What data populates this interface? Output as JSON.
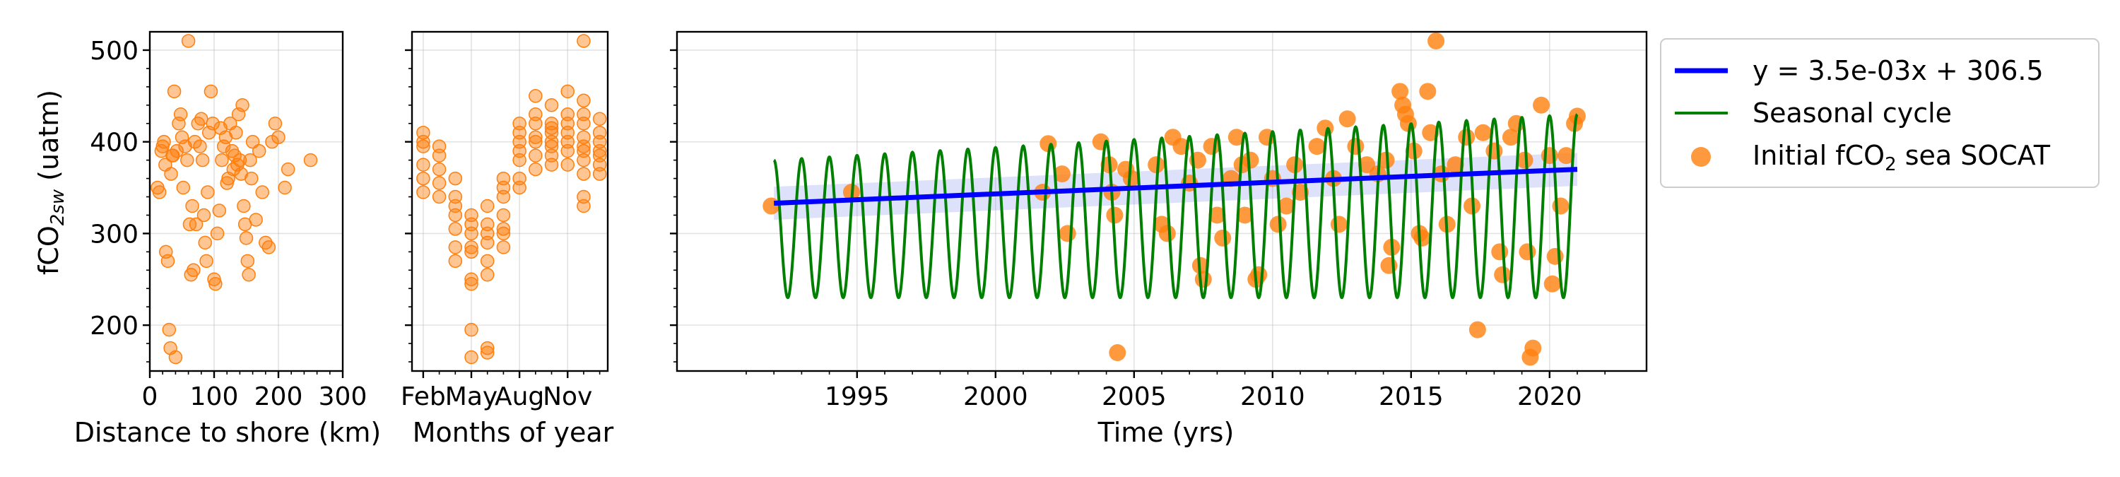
{
  "chart_data": [
    {
      "type": "scatter",
      "xlabel": "Distance to shore (km)",
      "ylabel": "fCO2sw (uatm)",
      "xlim": [
        0,
        300
      ],
      "ylim": [
        150,
        520
      ],
      "xticks": [
        0,
        100,
        200,
        300
      ],
      "yticks": [
        200,
        300,
        400,
        500
      ],
      "grid": true,
      "marker_color": "#ff7f0e",
      "points": [
        [
          22,
          400
        ],
        [
          25,
          280
        ],
        [
          28,
          270
        ],
        [
          30,
          195
        ],
        [
          32,
          175
        ],
        [
          35,
          385
        ],
        [
          38,
          455
        ],
        [
          40,
          165
        ],
        [
          42,
          390
        ],
        [
          45,
          420
        ],
        [
          48,
          430
        ],
        [
          50,
          405
        ],
        [
          52,
          350
        ],
        [
          55,
          395
        ],
        [
          58,
          380
        ],
        [
          60,
          510
        ],
        [
          62,
          310
        ],
        [
          64,
          255
        ],
        [
          66,
          330
        ],
        [
          68,
          260
        ],
        [
          70,
          400
        ],
        [
          72,
          310
        ],
        [
          75,
          420
        ],
        [
          78,
          395
        ],
        [
          80,
          425
        ],
        [
          82,
          380
        ],
        [
          84,
          320
        ],
        [
          86,
          290
        ],
        [
          88,
          270
        ],
        [
          90,
          345
        ],
        [
          92,
          410
        ],
        [
          95,
          455
        ],
        [
          98,
          420
        ],
        [
          100,
          250
        ],
        [
          102,
          245
        ],
        [
          105,
          300
        ],
        [
          108,
          325
        ],
        [
          110,
          415
        ],
        [
          112,
          380
        ],
        [
          115,
          395
        ],
        [
          118,
          405
        ],
        [
          120,
          355
        ],
        [
          122,
          360
        ],
        [
          125,
          420
        ],
        [
          128,
          390
        ],
        [
          130,
          370
        ],
        [
          132,
          385
        ],
        [
          134,
          410
        ],
        [
          136,
          375
        ],
        [
          138,
          430
        ],
        [
          140,
          380
        ],
        [
          142,
          365
        ],
        [
          144,
          440
        ],
        [
          146,
          330
        ],
        [
          148,
          310
        ],
        [
          150,
          295
        ],
        [
          152,
          270
        ],
        [
          154,
          255
        ],
        [
          156,
          380
        ],
        [
          158,
          360
        ],
        [
          160,
          400
        ],
        [
          165,
          315
        ],
        [
          170,
          390
        ],
        [
          175,
          345
        ],
        [
          180,
          290
        ],
        [
          185,
          285
        ],
        [
          190,
          400
        ],
        [
          195,
          420
        ],
        [
          200,
          405
        ],
        [
          210,
          350
        ],
        [
          215,
          370
        ],
        [
          250,
          380
        ],
        [
          12,
          350
        ],
        [
          15,
          345
        ],
        [
          18,
          390
        ],
        [
          20,
          395
        ],
        [
          24,
          375
        ],
        [
          33,
          365
        ],
        [
          36,
          385
        ]
      ]
    },
    {
      "type": "scatter",
      "xlabel": "Months of year",
      "xticks": [
        "Feb",
        "May",
        "Aug",
        "Nov"
      ],
      "ylim": [
        150,
        520
      ],
      "grid": true,
      "marker_color": "#ff7f0e",
      "points": [
        [
          1,
          400
        ],
        [
          1,
          375
        ],
        [
          1,
          360
        ],
        [
          1,
          410
        ],
        [
          1,
          345
        ],
        [
          1,
          395
        ],
        [
          2,
          385
        ],
        [
          2,
          370
        ],
        [
          2,
          355
        ],
        [
          2,
          340
        ],
        [
          2,
          395
        ],
        [
          3,
          360
        ],
        [
          3,
          340
        ],
        [
          3,
          320
        ],
        [
          3,
          285
        ],
        [
          3,
          270
        ],
        [
          3,
          330
        ],
        [
          3,
          305
        ],
        [
          4,
          300
        ],
        [
          4,
          285
        ],
        [
          4,
          250
        ],
        [
          4,
          245
        ],
        [
          4,
          195
        ],
        [
          4,
          165
        ],
        [
          4,
          280
        ],
        [
          4,
          320
        ],
        [
          4,
          310
        ],
        [
          5,
          310
        ],
        [
          5,
          290
        ],
        [
          5,
          270
        ],
        [
          5,
          255
        ],
        [
          5,
          175
        ],
        [
          5,
          170
        ],
        [
          5,
          330
        ],
        [
          5,
          300
        ],
        [
          6,
          320
        ],
        [
          6,
          300
        ],
        [
          6,
          340
        ],
        [
          6,
          285
        ],
        [
          6,
          360
        ],
        [
          6,
          350
        ],
        [
          6,
          305
        ],
        [
          7,
          420
        ],
        [
          7,
          400
        ],
        [
          7,
          380
        ],
        [
          7,
          360
        ],
        [
          7,
          350
        ],
        [
          7,
          410
        ],
        [
          7,
          390
        ],
        [
          8,
          450
        ],
        [
          8,
          420
        ],
        [
          8,
          400
        ],
        [
          8,
          385
        ],
        [
          8,
          370
        ],
        [
          8,
          405
        ],
        [
          8,
          430
        ],
        [
          9,
          440
        ],
        [
          9,
          415
        ],
        [
          9,
          400
        ],
        [
          9,
          395
        ],
        [
          9,
          420
        ],
        [
          9,
          385
        ],
        [
          9,
          375
        ],
        [
          9,
          410
        ],
        [
          10,
          455
        ],
        [
          10,
          420
        ],
        [
          10,
          400
        ],
        [
          10,
          390
        ],
        [
          10,
          430
        ],
        [
          10,
          410
        ],
        [
          10,
          375
        ],
        [
          11,
          510
        ],
        [
          11,
          445
        ],
        [
          11,
          420
        ],
        [
          11,
          390
        ],
        [
          11,
          380
        ],
        [
          11,
          340
        ],
        [
          11,
          330
        ],
        [
          11,
          365
        ],
        [
          11,
          405
        ],
        [
          11,
          430
        ],
        [
          11,
          395
        ],
        [
          12,
          425
        ],
        [
          12,
          410
        ],
        [
          12,
          400
        ],
        [
          12,
          375
        ],
        [
          12,
          390
        ],
        [
          12,
          365
        ],
        [
          12,
          385
        ]
      ]
    },
    {
      "type": "line",
      "xlabel": "Time (yrs)",
      "xlim": [
        1988.5,
        2023.5
      ],
      "ylim": [
        150,
        520
      ],
      "xticks": [
        1995,
        2000,
        2005,
        2010,
        2015,
        2020
      ],
      "yticks": [
        200,
        300,
        400,
        500
      ],
      "grid": true,
      "legend_position": "outside-right-top",
      "series": [
        {
          "name": "y = 3.5e-03x + 306.5",
          "kind": "trend",
          "color": "#0000ff",
          "x": [
            1992,
            2021
          ],
          "y": [
            333,
            370
          ],
          "band_halfwidth": 18,
          "band_color": "#6a75e6"
        },
        {
          "name": "Seasonal cycle",
          "kind": "seasonal",
          "color": "#008000",
          "x_start": 1992,
          "x_end": 2021,
          "y_start_mean": 305,
          "y_end_mean": 330,
          "amplitude_start": 75,
          "amplitude_end": 100,
          "period_years": 1.0
        },
        {
          "name": "Initial fCO2 sea SOCAT",
          "kind": "points",
          "color": "#ff7f0e",
          "points": [
            [
              1991.9,
              330
            ],
            [
              1994.8,
              345
            ],
            [
              2001.7,
              345
            ],
            [
              2001.9,
              398
            ],
            [
              2002.4,
              365
            ],
            [
              2002.6,
              300
            ],
            [
              2003.8,
              400
            ],
            [
              2004.1,
              375
            ],
            [
              2004.2,
              345
            ],
            [
              2004.3,
              320
            ],
            [
              2004.4,
              170
            ],
            [
              2004.7,
              370
            ],
            [
              2004.9,
              360
            ],
            [
              2005.8,
              375
            ],
            [
              2006.0,
              310
            ],
            [
              2006.2,
              300
            ],
            [
              2006.4,
              405
            ],
            [
              2006.7,
              395
            ],
            [
              2007.0,
              355
            ],
            [
              2007.3,
              380
            ],
            [
              2007.4,
              265
            ],
            [
              2007.5,
              250
            ],
            [
              2007.8,
              395
            ],
            [
              2008.0,
              320
            ],
            [
              2008.2,
              295
            ],
            [
              2008.5,
              360
            ],
            [
              2008.7,
              405
            ],
            [
              2008.9,
              375
            ],
            [
              2009.0,
              320
            ],
            [
              2009.2,
              380
            ],
            [
              2009.4,
              250
            ],
            [
              2009.5,
              255
            ],
            [
              2009.8,
              405
            ],
            [
              2010.0,
              360
            ],
            [
              2010.2,
              310
            ],
            [
              2010.5,
              330
            ],
            [
              2010.8,
              375
            ],
            [
              2011.0,
              345
            ],
            [
              2011.6,
              395
            ],
            [
              2011.9,
              415
            ],
            [
              2012.2,
              360
            ],
            [
              2012.4,
              310
            ],
            [
              2012.7,
              425
            ],
            [
              2013.0,
              395
            ],
            [
              2013.4,
              375
            ],
            [
              2013.8,
              365
            ],
            [
              2014.1,
              380
            ],
            [
              2014.2,
              265
            ],
            [
              2014.3,
              285
            ],
            [
              2014.6,
              455
            ],
            [
              2014.7,
              440
            ],
            [
              2014.8,
              430
            ],
            [
              2014.9,
              420
            ],
            [
              2015.1,
              390
            ],
            [
              2015.3,
              300
            ],
            [
              2015.4,
              295
            ],
            [
              2015.6,
              455
            ],
            [
              2015.7,
              410
            ],
            [
              2015.9,
              510
            ],
            [
              2016.1,
              365
            ],
            [
              2016.3,
              310
            ],
            [
              2016.6,
              375
            ],
            [
              2017.0,
              405
            ],
            [
              2017.2,
              330
            ],
            [
              2017.4,
              195
            ],
            [
              2017.6,
              410
            ],
            [
              2018.0,
              390
            ],
            [
              2018.2,
              280
            ],
            [
              2018.3,
              255
            ],
            [
              2018.6,
              405
            ],
            [
              2018.8,
              420
            ],
            [
              2019.1,
              380
            ],
            [
              2019.2,
              280
            ],
            [
              2019.3,
              165
            ],
            [
              2019.4,
              175
            ],
            [
              2019.7,
              440
            ],
            [
              2020.0,
              385
            ],
            [
              2020.1,
              245
            ],
            [
              2020.2,
              275
            ],
            [
              2020.4,
              330
            ],
            [
              2020.6,
              385
            ],
            [
              2020.9,
              420
            ],
            [
              2021.0,
              428
            ]
          ]
        }
      ]
    }
  ],
  "labels": {
    "ylabel_main": "fCO",
    "ylabel_sub": "2sw",
    "ylabel_unit": " (uatm)",
    "legend_points_prefix": "Initial fCO",
    "legend_points_sub": "2",
    "legend_points_suffix": " sea SOCAT"
  }
}
